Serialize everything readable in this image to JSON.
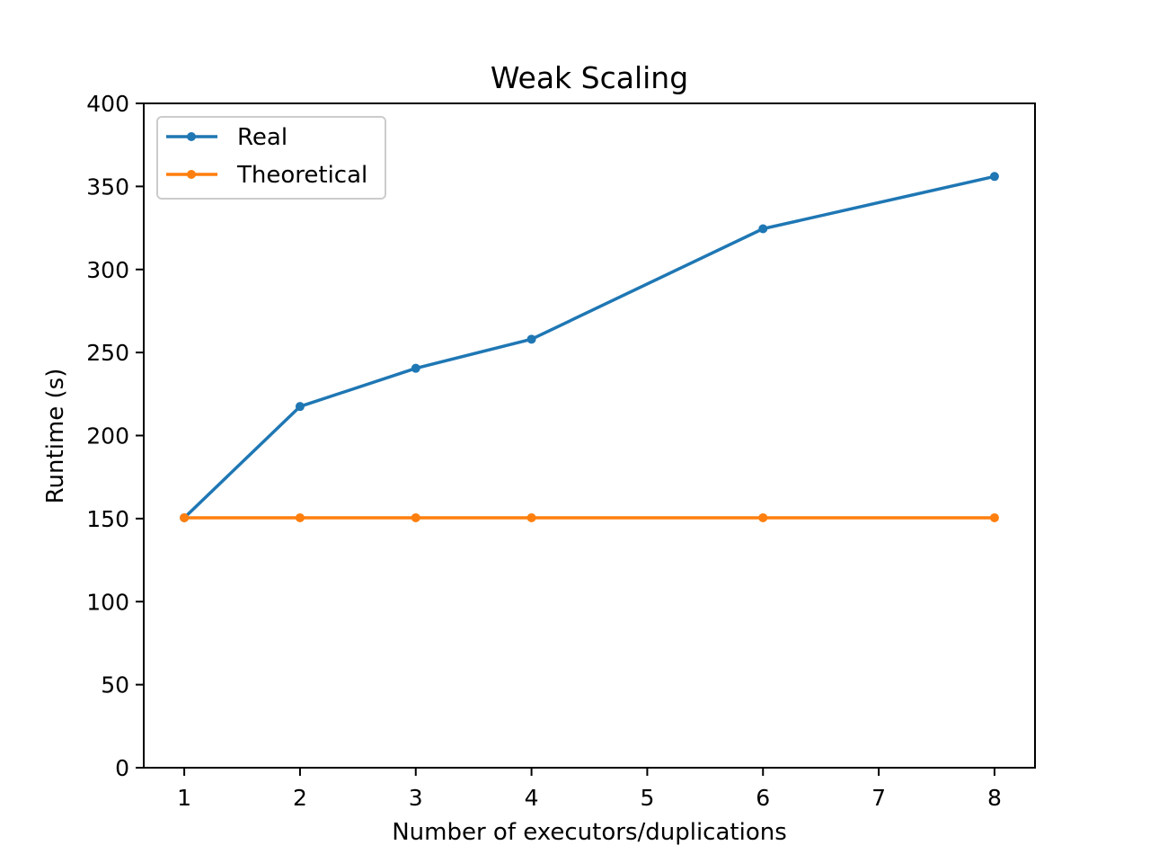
{
  "chart_data": {
    "type": "line",
    "title": "Weak Scaling",
    "xlabel": "Number of executors/duplications",
    "ylabel": "Runtime (s)",
    "xlim": [
      0.65,
      8.35
    ],
    "ylim": [
      0,
      400
    ],
    "xticks": [
      1,
      2,
      3,
      4,
      5,
      6,
      7,
      8
    ],
    "yticks": [
      0,
      50,
      100,
      150,
      200,
      250,
      300,
      350,
      400
    ],
    "grid": false,
    "legend_position": "top-left",
    "x": [
      1,
      2,
      3,
      4,
      6,
      8
    ],
    "series": [
      {
        "name": "Real",
        "color": "#1f77b4",
        "values": [
          150.5,
          217.5,
          240.5,
          258,
          324.5,
          356
        ]
      },
      {
        "name": "Theoretical",
        "color": "#ff7f0e",
        "values": [
          150.5,
          150.5,
          150.5,
          150.5,
          150.5,
          150.5
        ]
      }
    ]
  }
}
